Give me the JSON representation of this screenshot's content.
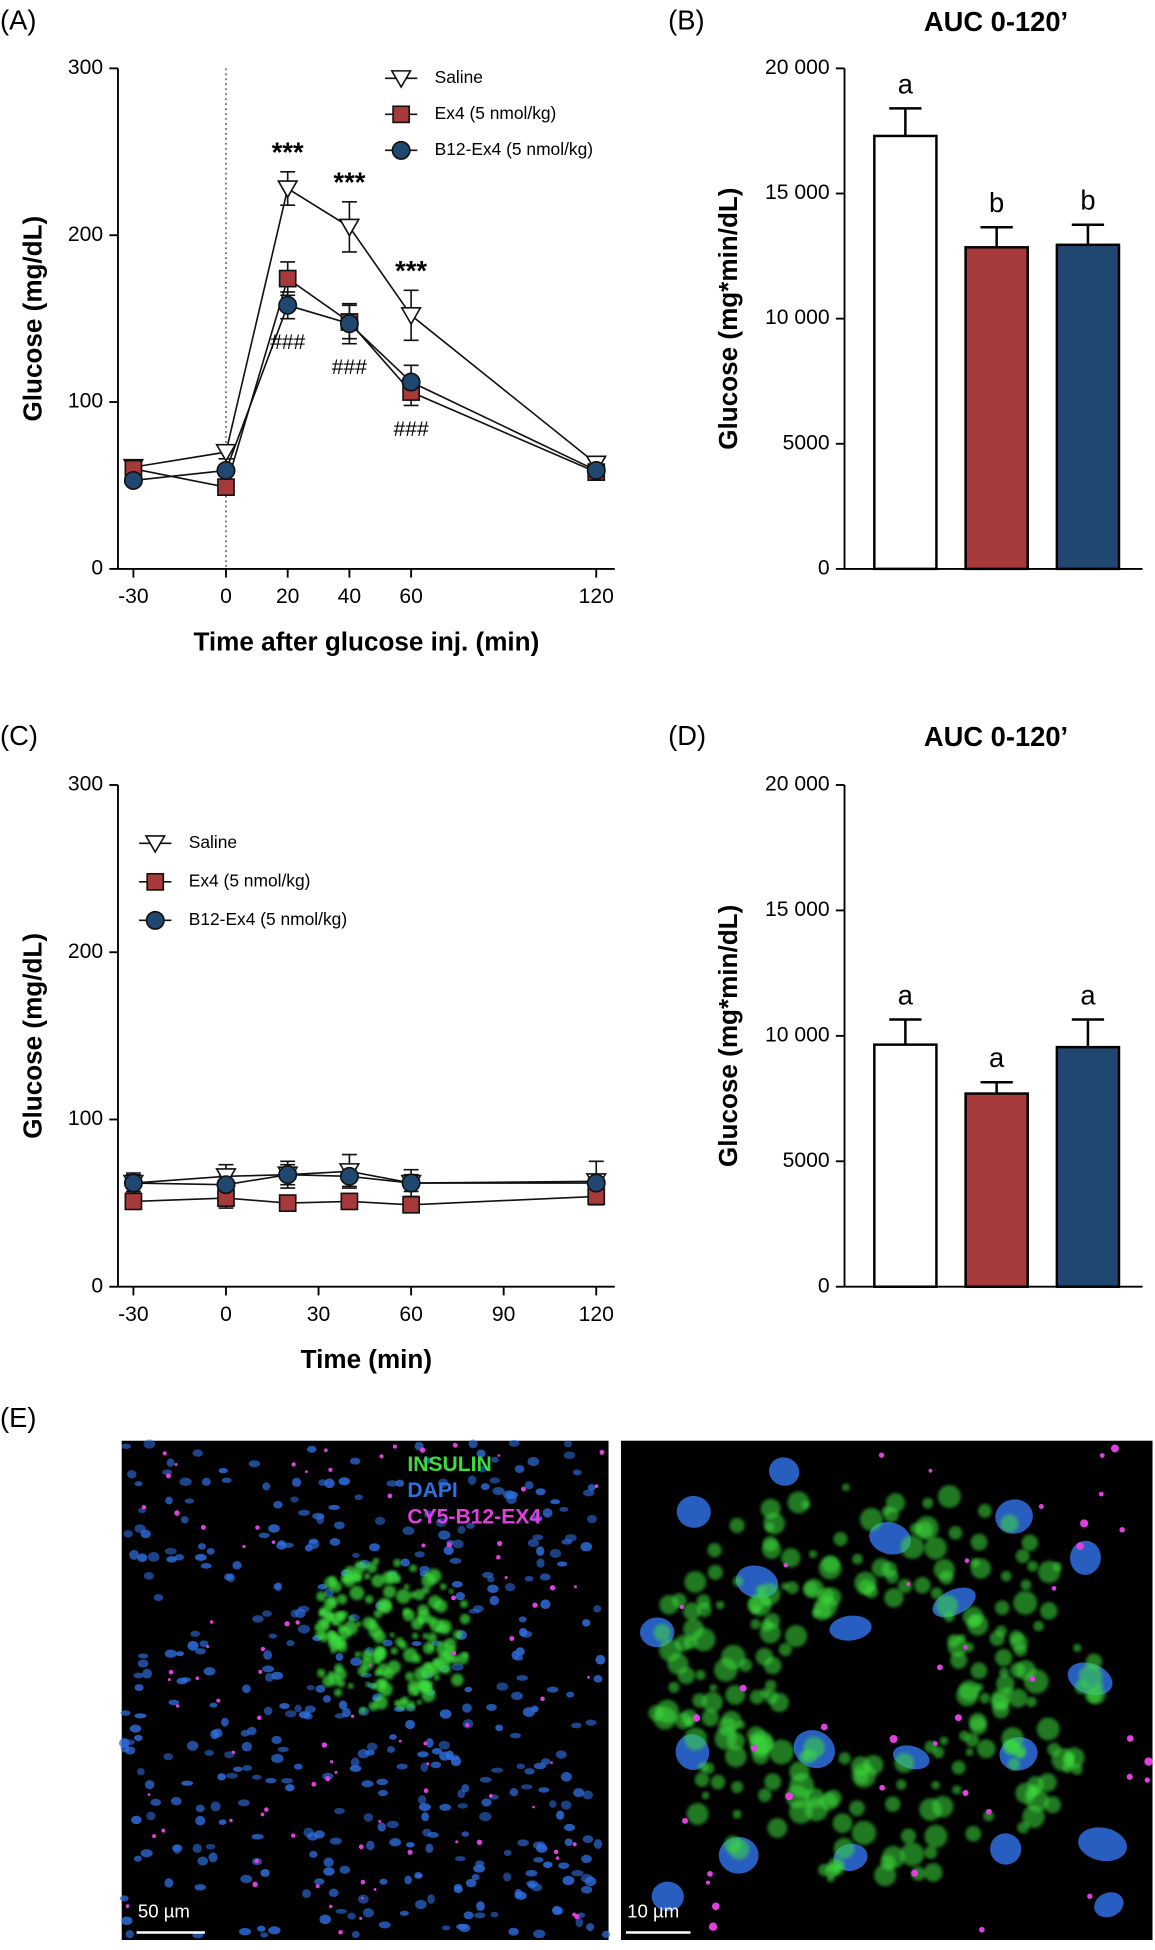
{
  "chart_data": [
    {
      "type": "line",
      "label": "(A)",
      "xlabel": "Time after glucose inj. (min)",
      "ylabel": "Glucose (mg/dL)",
      "x": [
        -30,
        0,
        20,
        40,
        60,
        120
      ],
      "xlim": [
        -35,
        126
      ],
      "xticks": [
        -30,
        0,
        20,
        40,
        60,
        120
      ],
      "ylim": [
        0,
        300
      ],
      "yticks": [
        0,
        100,
        200,
        300
      ],
      "vline": 0,
      "legend": "upper right",
      "series": [
        {
          "name": "Saline",
          "color": "#ffffff",
          "marker": "triangle-down",
          "values": [
            61,
            70,
            228,
            205,
            152,
            63
          ],
          "errors": [
            3,
            4,
            10,
            15,
            15,
            3
          ]
        },
        {
          "name": "Ex4 (5 nmol/kg)",
          "color": "#a63a3a",
          "marker": "square",
          "values": [
            60,
            49,
            174,
            148,
            106,
            58
          ],
          "errors": [
            3,
            3,
            10,
            10,
            8,
            3
          ]
        },
        {
          "name": "B12-Ex4 (5 nmol/kg)",
          "color": "#1f4770",
          "marker": "circle",
          "values": [
            53,
            59,
            158,
            147,
            112,
            59
          ],
          "errors": [
            3,
            3,
            8,
            12,
            10,
            3
          ]
        }
      ],
      "stars": {
        "text": "***",
        "x": [
          20,
          40,
          60
        ]
      },
      "hashes": {
        "text": "###",
        "x": [
          20,
          40,
          60
        ]
      }
    },
    {
      "type": "bar",
      "label": "(B)",
      "title": "AUC 0-120’",
      "ylabel": "Glucose (mg*min/dL)",
      "categories": [
        null,
        null,
        null
      ],
      "values": [
        17300,
        12850,
        12950
      ],
      "errors": [
        1100,
        800,
        800
      ],
      "annotations": [
        "a",
        "b",
        "b"
      ],
      "colors": [
        "#ffffff",
        "#a63a3a",
        "#1f4770"
      ],
      "ylim": [
        0,
        20000
      ],
      "yticks": [
        0,
        5000,
        {
          "value": 10000,
          "label": "10 000"
        },
        {
          "value": 15000,
          "label": "15 000"
        },
        {
          "value": 20000,
          "label": "20 000"
        }
      ]
    },
    {
      "type": "line",
      "label": "(C)",
      "xlabel": "Time (min)",
      "ylabel": "Glucose (mg/dL)",
      "x": [
        -30,
        0,
        20,
        40,
        60,
        120
      ],
      "xlim": [
        -35,
        126
      ],
      "xticks": [
        -30,
        0,
        30,
        60,
        90,
        120
      ],
      "ylim": [
        0,
        300
      ],
      "yticks": [
        0,
        100,
        200,
        300
      ],
      "legend": "upper left",
      "series": [
        {
          "name": "Saline",
          "color": "#ffffff",
          "marker": "triangle-down",
          "values": [
            62,
            66,
            67,
            69,
            62,
            63
          ],
          "errors": [
            6,
            7,
            8,
            10,
            8,
            12
          ]
        },
        {
          "name": "Ex4 (5 nmol/kg)",
          "color": "#a63a3a",
          "marker": "square",
          "values": [
            51,
            53,
            50,
            51,
            49,
            54
          ],
          "errors": [
            4,
            6,
            4,
            4,
            3,
            5
          ]
        },
        {
          "name": "B12-Ex4 (5 nmol/kg)",
          "color": "#1f4770",
          "marker": "circle",
          "values": [
            62,
            61,
            67,
            66,
            62,
            62
          ],
          "errors": [
            5,
            5,
            6,
            6,
            5,
            5
          ]
        }
      ]
    },
    {
      "type": "bar",
      "label": "(D)",
      "title": "AUC 0-120’",
      "ylabel": "Glucose (mg*min/dL)",
      "categories": [
        null,
        null,
        null
      ],
      "values": [
        9650,
        7700,
        9550
      ],
      "errors": [
        1000,
        450,
        1100
      ],
      "annotations": [
        "a",
        "a",
        "a"
      ],
      "colors": [
        "#ffffff",
        "#a63a3a",
        "#1f4770"
      ],
      "ylim": [
        0,
        20000
      ],
      "yticks": [
        0,
        5000,
        {
          "value": 10000,
          "label": "10 000"
        },
        {
          "value": 15000,
          "label": "15 000"
        },
        {
          "value": 20000,
          "label": "20 000"
        }
      ]
    }
  ],
  "image_panel": {
    "label": "(E)",
    "stains": [
      {
        "text": "INSULIN",
        "color": "#3ddc3d"
      },
      {
        "text": "DAPI",
        "color": "#2f6fe0"
      },
      {
        "text": "CY5-B12-EX4",
        "color": "#e040e0"
      }
    ],
    "scale_bars": [
      "50 µm",
      "10 µm"
    ]
  }
}
